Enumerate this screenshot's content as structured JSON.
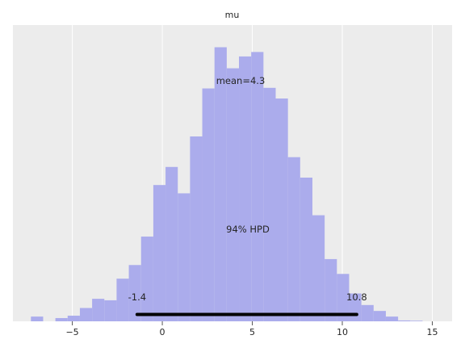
{
  "chart_data": {
    "type": "histogram",
    "title": "mu",
    "xlabel": "",
    "ylabel": "",
    "xlim": [
      -8.3,
      16.1
    ],
    "ylim": [
      0,
      1.0
    ],
    "grid": true,
    "x_ticks": [
      -5,
      0,
      5,
      10,
      15
    ],
    "x_tick_labels": [
      "−5",
      "0",
      "5",
      "10",
      "15"
    ],
    "bin_start": -7.3,
    "bin_width": 0.68,
    "bar_color": "#abacec",
    "background_color": "#ececec",
    "values": [
      0.016,
      0.0,
      0.011,
      0.019,
      0.045,
      0.076,
      0.071,
      0.144,
      0.19,
      0.286,
      0.46,
      0.521,
      0.432,
      0.624,
      0.786,
      0.925,
      0.854,
      0.894,
      0.909,
      0.788,
      0.752,
      0.554,
      0.485,
      0.358,
      0.21,
      0.16,
      0.094,
      0.055,
      0.035,
      0.016,
      0.003,
      0.002
    ],
    "mean": 4.3,
    "mean_label": "mean=4.3",
    "hpd": {
      "label": "94% HPD",
      "low": -1.4,
      "high": 10.8,
      "low_label": "-1.4",
      "high_label": "10.8"
    }
  }
}
